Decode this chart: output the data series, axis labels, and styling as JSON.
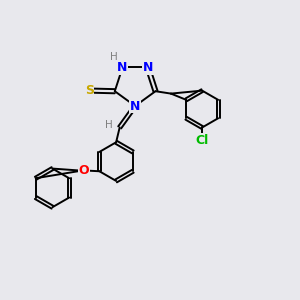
{
  "background_color": "#e8e8ed",
  "bond_color": "#000000",
  "atom_colors": {
    "N": "#0000ff",
    "S": "#c8a800",
    "O": "#ff0000",
    "Cl": "#00bb00",
    "H_label": "#808080"
  },
  "font_size_atom": 9,
  "font_size_small": 7.5,
  "lw": 1.4
}
